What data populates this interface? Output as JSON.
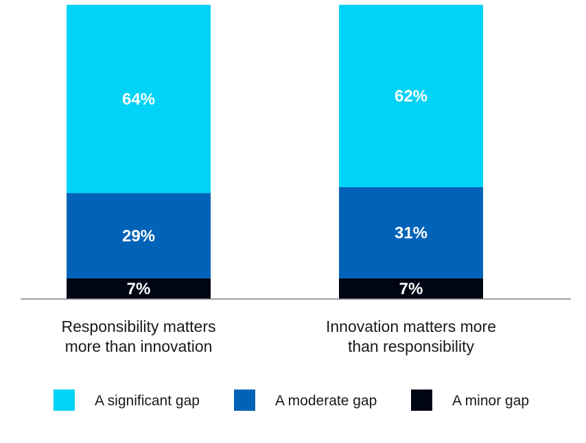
{
  "chart_data": {
    "type": "bar",
    "stacked": true,
    "categories": [
      [
        "Responsibility matters",
        "more than innovation"
      ],
      [
        "Innovation matters more",
        "than responsibility"
      ]
    ],
    "series": [
      {
        "name": "A minor gap",
        "color": "#000514",
        "values": [
          7,
          7
        ],
        "labels": [
          "7%",
          "7%"
        ]
      },
      {
        "name": "A moderate gap",
        "color": "#0063B8",
        "values": [
          29,
          31
        ],
        "labels": [
          "29%",
          "31%"
        ]
      },
      {
        "name": "A significant gap",
        "color": "#00D3F5",
        "values": [
          64,
          62
        ],
        "labels": [
          "64%",
          "62%"
        ]
      }
    ],
    "legend_order": [
      2,
      1,
      0
    ],
    "ylim": [
      0,
      100
    ],
    "grid": false,
    "legend_position": "bottom",
    "title": "",
    "xlabel": "",
    "ylabel": ""
  }
}
